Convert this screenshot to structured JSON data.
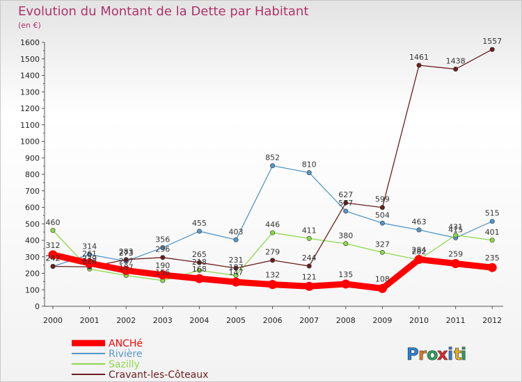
{
  "chart_data": {
    "type": "line",
    "title": "Evolution du Montant de la Dette par Habitant",
    "subtitle": "(en €)",
    "xlabel": "",
    "ylabel": "",
    "categories": [
      "2000",
      "2001",
      "2002",
      "2003",
      "2004",
      "2005",
      "2006",
      "2007",
      "2008",
      "2009",
      "2010",
      "2011",
      "2012"
    ],
    "ylim": [
      0,
      1600
    ],
    "yticks": [
      0,
      100,
      200,
      300,
      400,
      500,
      600,
      700,
      800,
      900,
      1000,
      1100,
      1200,
      1300,
      1400,
      1500,
      1600
    ],
    "grid": false,
    "legend_position": "bottom-left",
    "series": [
      {
        "name": "ANCHé",
        "color": "#ff0000",
        "values": [
          312,
          261,
          217,
          190,
          168,
          147,
          132,
          121,
          135,
          108,
          284,
          259,
          235
        ]
      },
      {
        "name": "Rivière",
        "color": "#5596c8",
        "values": [
          242,
          314,
          273,
          356,
          455,
          403,
          852,
          810,
          577,
          504,
          463,
          415,
          515
        ]
      },
      {
        "name": "Sazilly",
        "color": "#8cd94a",
        "values": [
          460,
          226,
          187,
          156,
          218,
          187,
          446,
          411,
          380,
          327,
          282,
          431,
          401
        ]
      },
      {
        "name": "Cravant-les-Côteaux",
        "color": "#6b1d1d",
        "values": [
          242,
          239,
          283,
          296,
          265,
          231,
          279,
          244,
          627,
          599,
          1461,
          1438,
          1557
        ]
      }
    ]
  },
  "brand": {
    "letters": [
      "P",
      "r",
      "o",
      "x",
      "i",
      "t",
      "i"
    ]
  }
}
